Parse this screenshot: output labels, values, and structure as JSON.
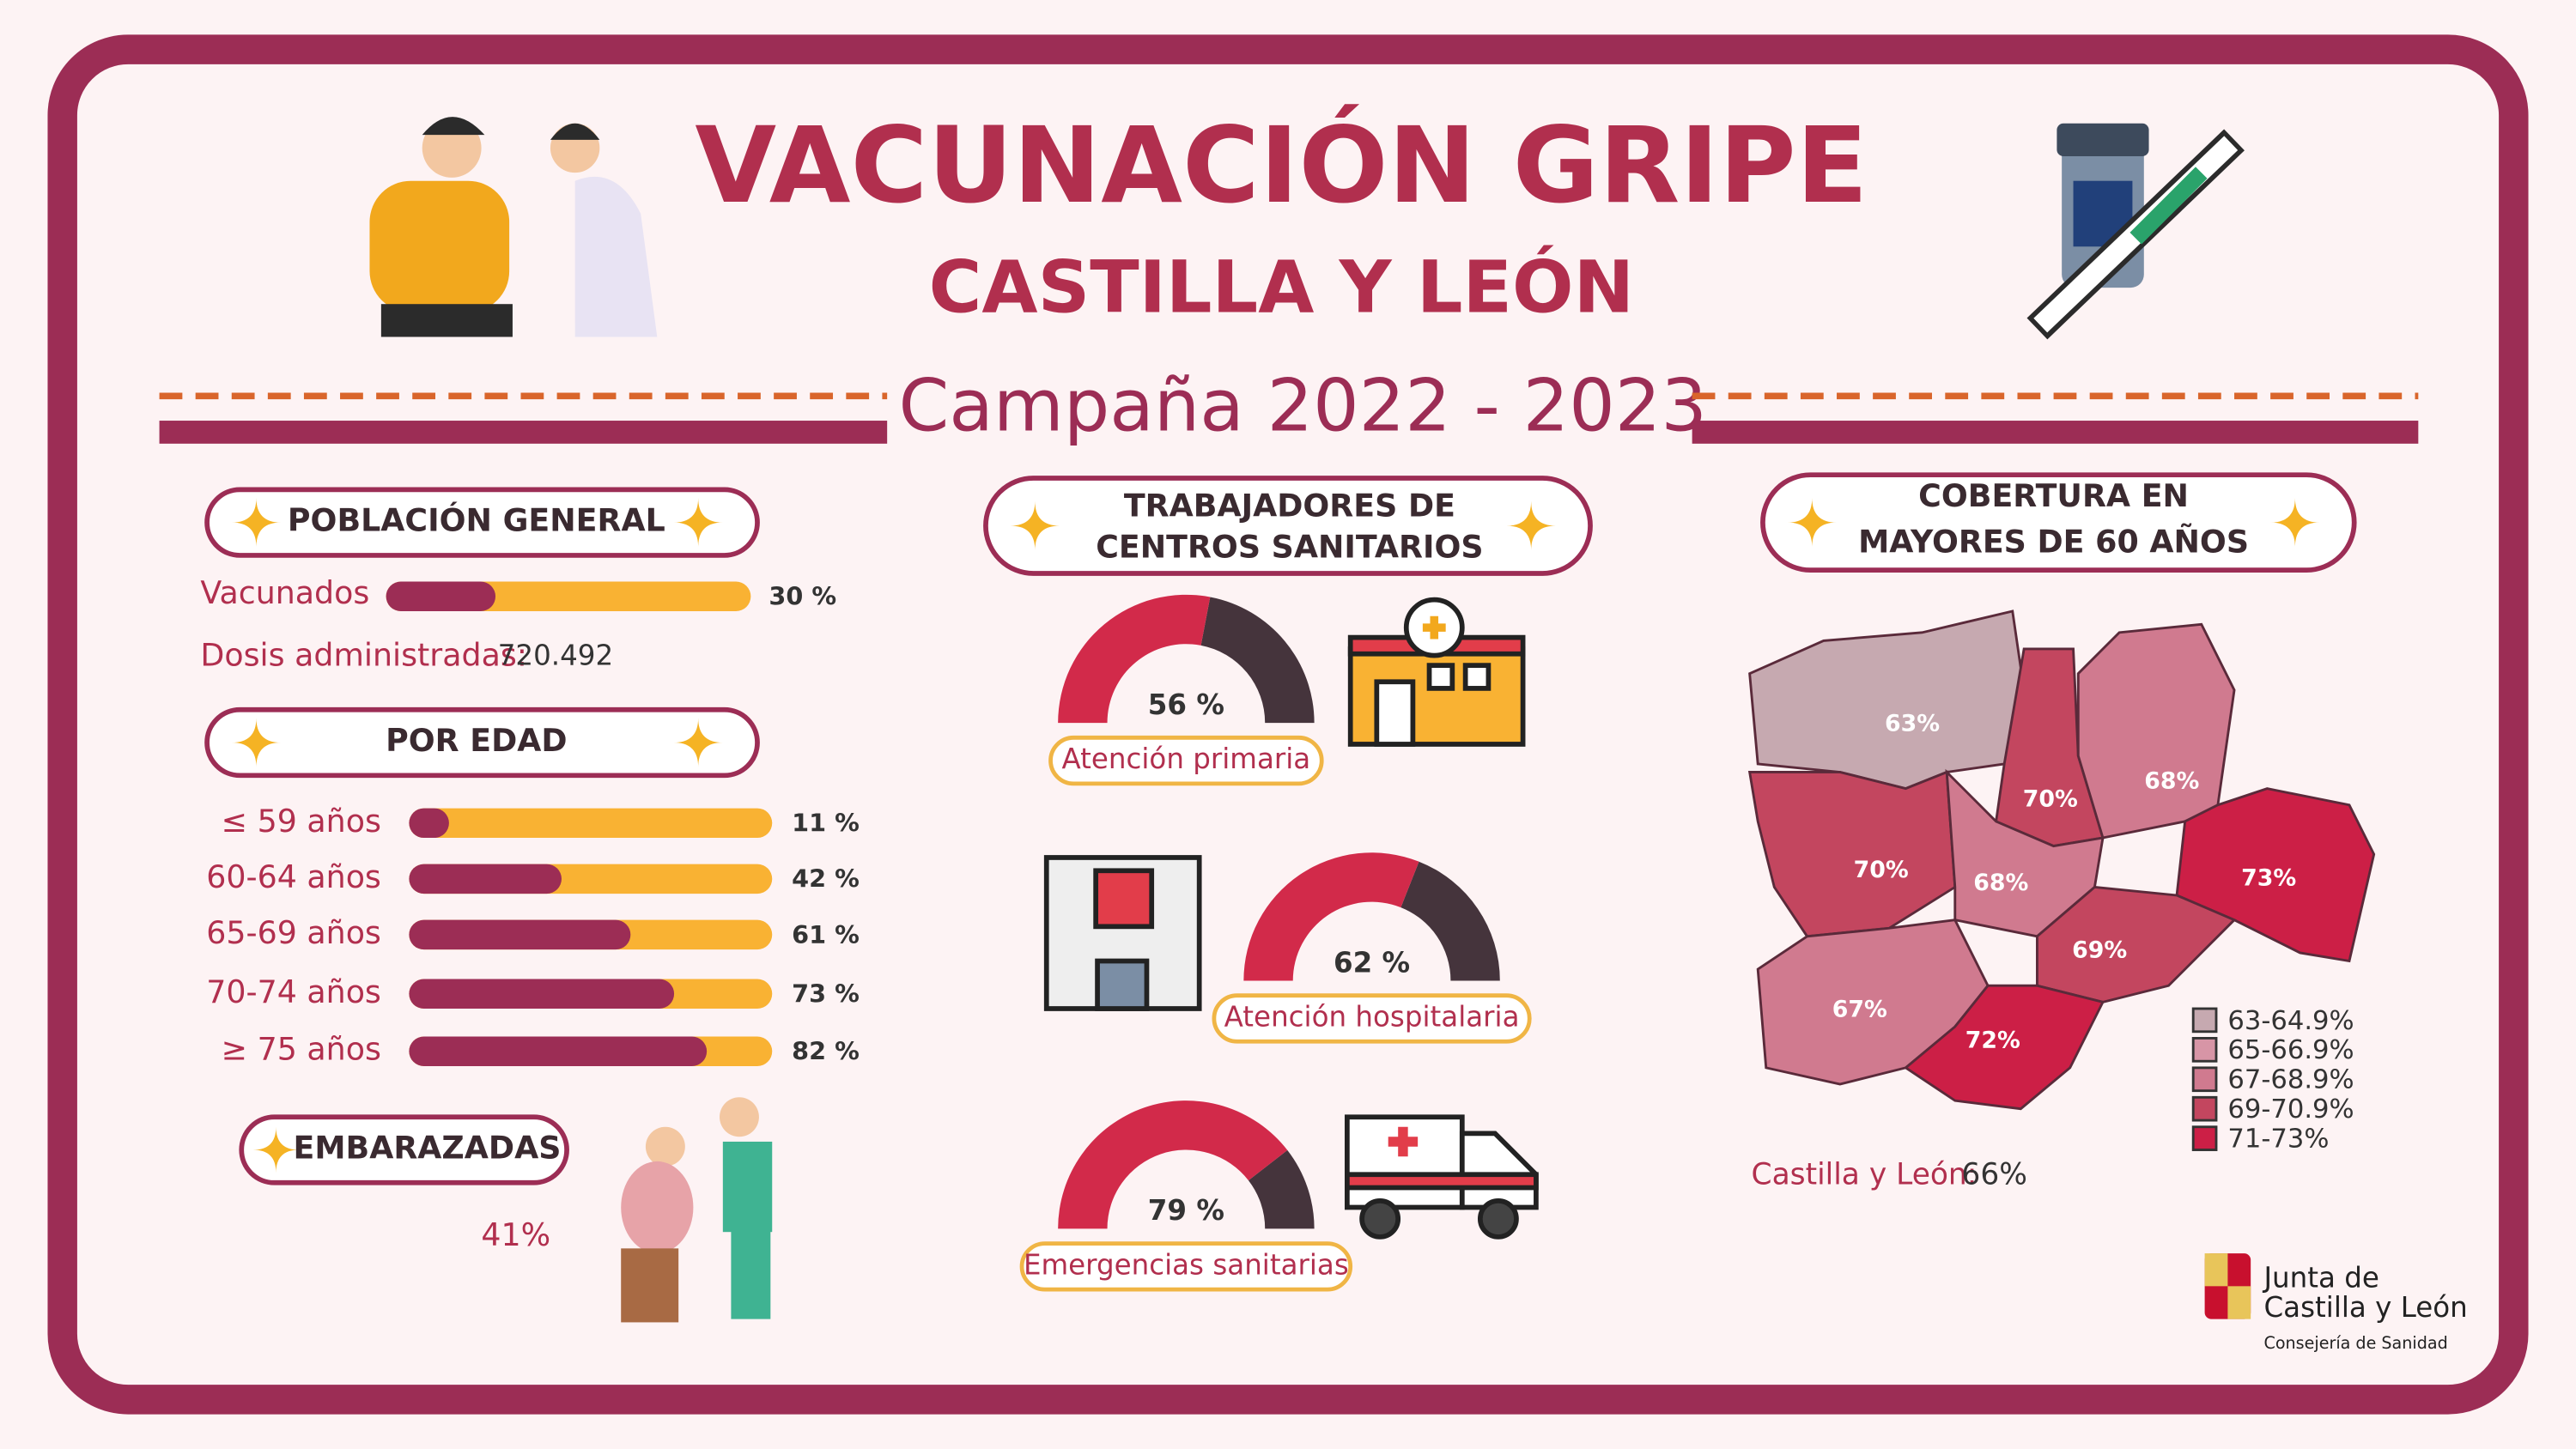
{
  "header": {
    "title": "VACUNACIÓN GRIPE",
    "subtitle": "CASTILLA Y LEÓN",
    "campaign": "Campaña 2022 - 2023"
  },
  "general": {
    "heading": "POBLACIÓN GENERAL",
    "vaccinated": {
      "label": "Vacunados",
      "value": 30,
      "value_label": "30 %"
    },
    "doses": {
      "label": "Dosis administradas:",
      "value_label": "720.492"
    }
  },
  "age": {
    "heading": "POR EDAD",
    "groups": [
      {
        "label": "≤ 59 años",
        "value": 11,
        "value_label": "11 %"
      },
      {
        "label": "60-64 años",
        "value": 42,
        "value_label": "42 %"
      },
      {
        "label": "65-69 años",
        "value": 61,
        "value_label": "61 %"
      },
      {
        "label": "70-74 años",
        "value": 73,
        "value_label": "73 %"
      },
      {
        "label": "≥ 75 años",
        "value": 82,
        "value_label": "82 %"
      }
    ]
  },
  "pregnant": {
    "heading": "EMBARAZADAS",
    "value_label": "41%"
  },
  "workers": {
    "heading_lines": [
      "TRABAJADORES DE",
      "CENTROS SANITARIOS"
    ],
    "items": [
      {
        "label": "Atención primaria",
        "value": 56,
        "value_label": "56 %"
      },
      {
        "label": "Atención hospitalaria",
        "value": 62,
        "value_label": "62 %"
      },
      {
        "label": "Emergencias sanitarias",
        "value": 79,
        "value_label": "79 %"
      }
    ]
  },
  "coverage": {
    "heading_lines": [
      "COBERTURA EN",
      "MAYORES DE 60 AÑOS"
    ],
    "provinces": [
      {
        "label": "63%",
        "color": "#c6a9b0"
      },
      {
        "label": "70%",
        "color": "#c3465f"
      },
      {
        "label": "68%",
        "color": "#d07a8f"
      },
      {
        "label": "70%",
        "color": "#c3465f"
      },
      {
        "label": "68%",
        "color": "#d07a8f"
      },
      {
        "label": "73%",
        "color": "#cc1f46"
      },
      {
        "label": "69%",
        "color": "#c3465f"
      },
      {
        "label": "67%",
        "color": "#d07a8f"
      },
      {
        "label": "72%",
        "color": "#cc1f46"
      }
    ],
    "legend": [
      {
        "label": "63-64.9%",
        "color": "#c6a9b0"
      },
      {
        "label": "65-66.9%",
        "color": "#d795a6"
      },
      {
        "label": "67-68.9%",
        "color": "#d07a8f"
      },
      {
        "label": "69-70.9%",
        "color": "#c3465f"
      },
      {
        "label": "71-73%",
        "color": "#cc1f46"
      }
    ],
    "total_label": "Castilla y León:",
    "total_value": "66%"
  },
  "footer": {
    "org_lines": [
      "Junta de",
      "Castilla y León"
    ],
    "dept": "Consejería de Sanidad"
  }
}
